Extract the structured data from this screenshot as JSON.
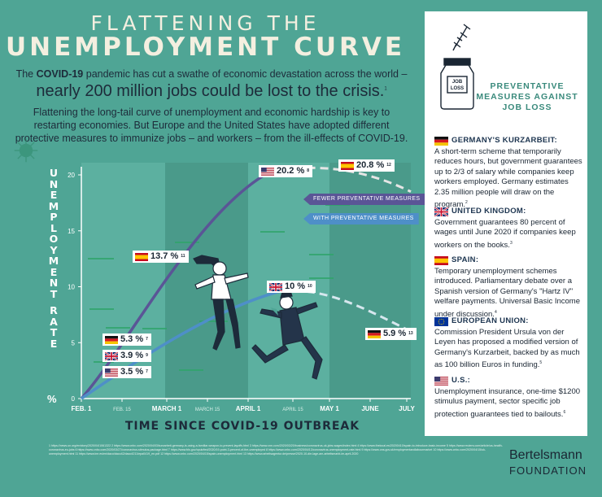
{
  "header": {
    "title_line1": "FLATTENING THE",
    "title_line2": "UNEMPLOYMENT CURVE",
    "intro_pre": "The",
    "intro_bold": "COVID-19",
    "intro_post": "pandemic has cut a swathe of economic devastation across the world –",
    "headline": "nearly 200 million jobs could be lost to the crisis.",
    "headline_ref": "1",
    "intro3": "Flattening the long-tail curve of unemployment and economic hardship is key to restarting economies. But Europe and the United States have adopted different protective measures to immunize jobs – and workers – from the ill-effects of COVID-19."
  },
  "chart_data": {
    "type": "line",
    "ylabel": "UNEMPLOYMENT RATE",
    "ylabel_unit": "%",
    "xlabel": "TIME SINCE COVID-19 OUTBREAK",
    "ylim": [
      0,
      20
    ],
    "yticks": [
      0,
      5,
      10,
      15,
      20
    ],
    "xticks": [
      {
        "label": "FEB. 1",
        "major": true
      },
      {
        "label": "FEB. 15",
        "major": false
      },
      {
        "label": "MARCH 1",
        "major": true
      },
      {
        "label": "MARCH 15",
        "major": false
      },
      {
        "label": "APRIL 1",
        "major": true
      },
      {
        "label": "APRIL 15",
        "major": false
      },
      {
        "label": "MAY 1",
        "major": true
      },
      {
        "label": "JUNE",
        "major": true
      },
      {
        "label": "JULY",
        "major": true
      }
    ],
    "legend": [
      {
        "label": "FEWER PREVENTATIVE MEASURES",
        "color": "#5a5596"
      },
      {
        "label": "WITH PREVENTATIVE MEASURES",
        "color": "#4e8fc8"
      }
    ],
    "series": [
      {
        "name": "FEWER PREVENTATIVE MEASURES",
        "color": "#5a5596"
      },
      {
        "name": "WITH PREVENTATIVE MEASURES",
        "color": "#4e8fc8"
      }
    ],
    "annotations": [
      {
        "country": "U.S.",
        "flag": "us",
        "value": "20.2 %",
        "ref": "8"
      },
      {
        "country": "Spain",
        "flag": "es",
        "value": "20.8 %",
        "ref": "12"
      },
      {
        "country": "Spain",
        "flag": "es",
        "value": "13.7 %",
        "ref": "11"
      },
      {
        "country": "United Kingdom",
        "flag": "uk",
        "value": "10 %",
        "ref": "10"
      },
      {
        "country": "Germany",
        "flag": "de",
        "value": "5.3 %",
        "ref": "7"
      },
      {
        "country": "United Kingdom",
        "flag": "uk",
        "value": "3.9 %",
        "ref": "9"
      },
      {
        "country": "U.S.",
        "flag": "us",
        "value": "3.5 %",
        "ref": "7"
      },
      {
        "country": "Germany",
        "flag": "de",
        "value": "5.9 %",
        "ref": "13"
      }
    ]
  },
  "panel": {
    "title": "PREVENTATIVE MEASURES AGAINST JOB LOSS",
    "bottle_label": "JOB LOSS",
    "sections": [
      {
        "flag": "de",
        "heading": "GERMANY'S KURZARBEIT:",
        "text": "A short-term scheme that temporarily reduces hours, but government guarantees up to 2/3 of salary while companies keep workers employed. Germany estimates 2.35 million people will draw on the program.",
        "ref": "2"
      },
      {
        "flag": "uk",
        "heading": "UNITED KINGDOM:",
        "text": "Government guarantees 80 percent of wages until June 2020 if companies keep workers on the books.",
        "ref": "3"
      },
      {
        "flag": "es",
        "heading": "SPAIN:",
        "text": "Temporary unemployment schemes introduced. Parliamentary debate over a Spanish version of Germany's \"Hartz IV\" welfare payments. Universal Basic Income under discussion.",
        "ref": "4"
      },
      {
        "flag": "eu",
        "heading": "EUROPEAN UNION:",
        "text": "Commission President Ursula von der Leyen has proposed a modified version of Germany's Kurzarbeit, backed by as much as 100 billion Euros in funding.",
        "ref": "5"
      },
      {
        "flag": "us",
        "heading": "U.S.:",
        "text": "Unemployment insurance, one-time $1200 stimulus payment, sector specific job protection guarantees tied to bailouts.",
        "ref": "6"
      }
    ]
  },
  "footnotes": "1 https://news.un.org/en/story/2020/04/1061322  2 https://www.cnbc.com/2020/04/03/kurzarbeit-germany-is-using-a-familiar-weapon-to-prevent-layoffs.html  3 https://www.cnn.com/2020/03/20/business/coronavirus-uk-jobs-wages/index.html  4 https://www.thelocal.es/20200410/spain-to-introduce-basic-income  5 https://www.reuters.com/article/us-health-coronavirus-eu-jobs  6 https://www.cnbc.com/2020/03/27/coronavirus-stimulus-package.html  7 https://www.bls.gov/opub/ted/2020/19-point-3-percent-of-the-unemployed  8 https://www.cnbc.com/2020/04/13/coronavirus-unemployment-rate.html  9 https://www.ons.gov.uk/employmentandlabourmarket  10 https://www.cnbc.com/2020/04/15/uk-unemployment.html  11 https://www.ine.es/en/daco/daco42/daco4211/epa0419_en.pdf  12 https://www.cnbc.com/2020/04/15/spain-unemployment.html  13 https://www.arbeitsagentur.de/presse/2020-10-die-lage-am-arbeitsmarkt-im-april-2020",
  "brand": {
    "line1": "Bertelsmann",
    "line2": "FOUNDATION"
  }
}
